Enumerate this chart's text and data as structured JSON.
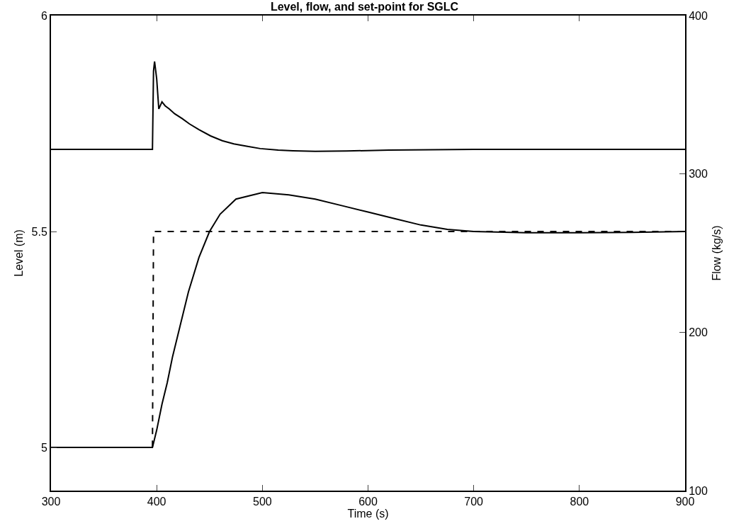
{
  "chart_data": {
    "type": "line",
    "title": "Level, flow, and set-point for SGLC",
    "xlabel": "Time (s)",
    "ylabel": "Level (m)",
    "y2label": "Flow (kg/s)",
    "xlim": [
      300,
      900
    ],
    "xticks": [
      300,
      400,
      500,
      600,
      700,
      800,
      900
    ],
    "ylim": [
      4.9,
      6
    ],
    "yticks": [
      5,
      5.5,
      6
    ],
    "y2lim": [
      100,
      400
    ],
    "y2ticks": [
      100,
      200,
      300,
      400
    ],
    "grid": false,
    "series": [
      {
        "color": "#000000",
        "line_style": "solid",
        "x": [
          300,
          396,
          400,
          405,
          410,
          415,
          420,
          425,
          430,
          440,
          450,
          460,
          475,
          500,
          525,
          550,
          575,
          600,
          625,
          650,
          675,
          700,
          750,
          800,
          850,
          900
        ],
        "values": [
          5,
          5,
          5.04,
          5.1,
          5.15,
          5.21,
          5.26,
          5.31,
          5.36,
          5.44,
          5.5,
          5.54,
          5.575,
          5.59,
          5.585,
          5.575,
          5.56,
          5.545,
          5.53,
          5.515,
          5.505,
          5.5,
          5.497,
          5.497,
          5.498,
          5.5
        ]
      },
      {
        "color": "#000000",
        "line_style": "dashed",
        "x": [
          300,
          396,
          397,
          900
        ],
        "values": [
          5,
          5,
          5.5,
          5.5
        ]
      },
      {
        "color": "#000000",
        "line_style": "solid",
        "axis": "y2",
        "x": [
          300,
          396,
          397,
          398,
          400,
          402,
          405,
          408,
          412,
          417,
          424,
          431,
          440,
          451,
          462,
          473,
          485,
          498,
          515,
          529,
          550,
          580,
          620,
          700,
          800,
          900
        ],
        "values": [
          315.5,
          315.5,
          365,
          371,
          360,
          341,
          345.5,
          343,
          341,
          338,
          335,
          331.6,
          328,
          324,
          321,
          319,
          317.5,
          316,
          315,
          314.6,
          314.3,
          314.5,
          315,
          315.5,
          315.5,
          315.5
        ]
      }
    ]
  }
}
